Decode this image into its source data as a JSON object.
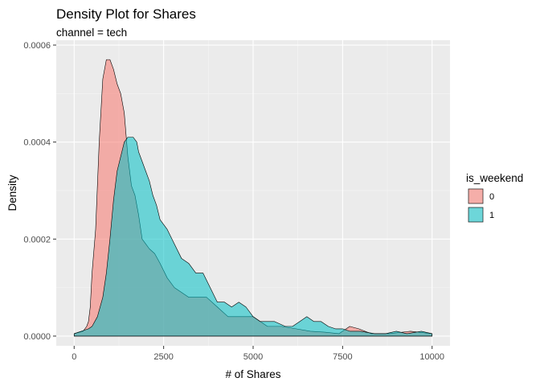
{
  "chart_data": {
    "type": "area",
    "title": "Density Plot for Shares",
    "subtitle": "channel =  tech",
    "xlabel": "# of Shares",
    "ylabel": "Density",
    "xlim": [
      -500,
      10500
    ],
    "ylim": [
      -2e-05,
      0.00061
    ],
    "x_ticks": [
      0,
      2500,
      5000,
      7500,
      10000
    ],
    "x_tick_labels": [
      "0",
      "2500",
      "5000",
      "7500",
      "10000"
    ],
    "y_ticks": [
      0,
      0.0002,
      0.0004,
      0.0006
    ],
    "y_tick_labels": [
      "0.0000",
      "0.0002",
      "0.0004",
      "0.0006"
    ],
    "grid": true,
    "legend_position": "right",
    "legend_title": "is_weekend",
    "series": [
      {
        "name": "0",
        "color": "#F8766D",
        "points": [
          [
            0,
            5e-06
          ],
          [
            250,
            1e-05
          ],
          [
            350,
            2e-05
          ],
          [
            400,
            3e-05
          ],
          [
            450,
            6e-05
          ],
          [
            500,
            0.00013
          ],
          [
            600,
            0.00022
          ],
          [
            700,
            0.0004
          ],
          [
            800,
            0.00053
          ],
          [
            900,
            0.00057
          ],
          [
            1000,
            0.00057
          ],
          [
            1100,
            0.00055
          ],
          [
            1200,
            0.00052
          ],
          [
            1300,
            0.0005
          ],
          [
            1400,
            0.00046
          ],
          [
            1500,
            0.00037
          ],
          [
            1600,
            0.00031
          ],
          [
            1700,
            0.00029
          ],
          [
            1800,
            0.00025
          ],
          [
            1900,
            0.0002
          ],
          [
            2000,
            0.00019
          ],
          [
            2100,
            0.00018
          ],
          [
            2250,
            0.00017
          ],
          [
            2400,
            0.00015
          ],
          [
            2600,
            0.00012
          ],
          [
            2800,
            0.0001
          ],
          [
            3000,
            9e-05
          ],
          [
            3200,
            8e-05
          ],
          [
            3400,
            8e-05
          ],
          [
            3700,
            8e-05
          ],
          [
            4000,
            6e-05
          ],
          [
            4300,
            4e-05
          ],
          [
            4600,
            4e-05
          ],
          [
            5000,
            4e-05
          ],
          [
            5400,
            2e-05
          ],
          [
            5800,
            2e-05
          ],
          [
            6200,
            1.5e-05
          ],
          [
            6600,
            1e-05
          ],
          [
            7000,
            8e-06
          ],
          [
            7400,
            5e-06
          ],
          [
            7700,
            2e-05
          ],
          [
            7950,
            1.5e-05
          ],
          [
            8300,
            5e-06
          ],
          [
            8800,
            5e-06
          ],
          [
            9400,
            1e-05
          ],
          [
            10000,
            5e-06
          ]
        ]
      },
      {
        "name": "1",
        "color": "#00BFC4",
        "points": [
          [
            0,
            5e-06
          ],
          [
            200,
            1e-05
          ],
          [
            400,
            1.5e-05
          ],
          [
            500,
            2e-05
          ],
          [
            650,
            4e-05
          ],
          [
            800,
            8e-05
          ],
          [
            900,
            0.00013
          ],
          [
            1000,
            0.0002
          ],
          [
            1100,
            0.00028
          ],
          [
            1200,
            0.00034
          ],
          [
            1300,
            0.00037
          ],
          [
            1400,
            0.0004
          ],
          [
            1500,
            0.00041
          ],
          [
            1650,
            0.00041
          ],
          [
            1750,
            0.0004
          ],
          [
            1800,
            0.00038
          ],
          [
            1900,
            0.00036
          ],
          [
            2000,
            0.00034
          ],
          [
            2100,
            0.00032
          ],
          [
            2200,
            0.00029
          ],
          [
            2300,
            0.00027
          ],
          [
            2400,
            0.00024
          ],
          [
            2500,
            0.00023
          ],
          [
            2600,
            0.00022
          ],
          [
            2800,
            0.00019
          ],
          [
            3000,
            0.00016
          ],
          [
            3200,
            0.00015
          ],
          [
            3400,
            0.00013
          ],
          [
            3600,
            0.00013
          ],
          [
            3800,
            0.0001
          ],
          [
            4000,
            7e-05
          ],
          [
            4200,
            7e-05
          ],
          [
            4400,
            6e-05
          ],
          [
            4600,
            7e-05
          ],
          [
            4800,
            6e-05
          ],
          [
            5000,
            4e-05
          ],
          [
            5200,
            3e-05
          ],
          [
            5600,
            3e-05
          ],
          [
            5900,
            2e-05
          ],
          [
            6100,
            2e-05
          ],
          [
            6300,
            3e-05
          ],
          [
            6500,
            4e-05
          ],
          [
            6700,
            3e-05
          ],
          [
            6900,
            3e-05
          ],
          [
            7100,
            2e-05
          ],
          [
            7300,
            1.5e-05
          ],
          [
            7500,
            1.5e-05
          ],
          [
            7700,
            1e-05
          ],
          [
            8000,
            1e-05
          ],
          [
            8400,
            5e-06
          ],
          [
            8700,
            5e-06
          ],
          [
            9000,
            1e-05
          ],
          [
            9300,
            5e-06
          ],
          [
            9700,
            1e-05
          ],
          [
            10000,
            5e-06
          ]
        ]
      }
    ]
  }
}
